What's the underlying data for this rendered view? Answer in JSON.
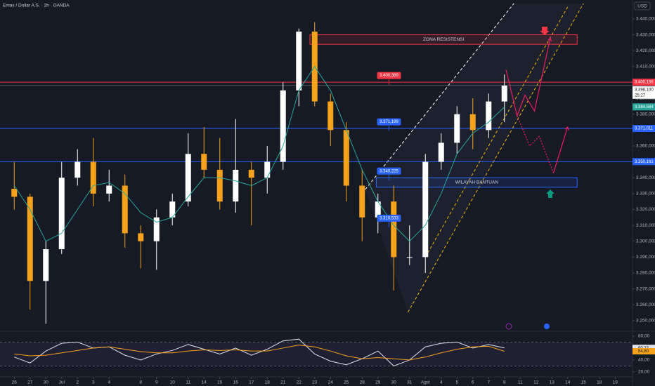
{
  "chart_data": [
    {
      "type": "candlestick",
      "title": "Emas / Dollar A.S. · 2h · OANDA",
      "currency": "USD",
      "x": [
        0,
        1,
        2,
        3,
        4,
        5,
        6,
        7,
        8,
        9,
        10,
        11,
        12,
        13,
        14,
        15,
        16,
        17,
        18,
        19,
        20,
        21,
        22,
        23,
        24,
        25,
        26,
        27,
        28,
        29,
        30,
        31
      ],
      "open": [
        3333,
        3328,
        3275,
        3295,
        3340,
        3350,
        3330,
        3335,
        3305,
        3300,
        3315,
        3325,
        3355,
        3345,
        3325,
        3345,
        3340,
        3350,
        3395,
        3432,
        3388,
        3370,
        3335,
        3315,
        3325,
        3290,
        3290,
        3350,
        3362,
        3380,
        3370,
        3388
      ],
      "high": [
        3350,
        3330,
        3300,
        3350,
        3358,
        3365,
        3345,
        3342,
        3310,
        3320,
        3330,
        3368,
        3372,
        3365,
        3377,
        3350,
        3360,
        3400,
        3434,
        3438,
        3393,
        3375,
        3345,
        3330,
        3335,
        3310,
        3355,
        3368,
        3385,
        3390,
        3393,
        3405
      ],
      "low": [
        3320,
        3257,
        3248,
        3292,
        3335,
        3322,
        3325,
        3296,
        3283,
        3282,
        3310,
        3322,
        3340,
        3320,
        3318,
        3310,
        3330,
        3345,
        3385,
        3385,
        3360,
        3325,
        3300,
        3305,
        3269,
        3285,
        3280,
        3345,
        3355,
        3358,
        3365,
        3375
      ],
      "close": [
        3328,
        3275,
        3295,
        3340,
        3350,
        3330,
        3335,
        3305,
        3300,
        3315,
        3325,
        3355,
        3345,
        3325,
        3345,
        3340,
        3350,
        3395,
        3432,
        3388,
        3370,
        3335,
        3315,
        3325,
        3290,
        3290,
        3350,
        3362,
        3380,
        3370,
        3388,
        3398
      ],
      "up_color": "#ffffff",
      "down_color": "#f7a21b",
      "ma": {
        "color": "#26a69a",
        "values": [
          3335,
          3320,
          3300,
          3305,
          3320,
          3335,
          3337,
          3330,
          3318,
          3312,
          3315,
          3328,
          3340,
          3340,
          3338,
          3335,
          3340,
          3360,
          3395,
          3410,
          3395,
          3370,
          3345,
          3325,
          3310,
          3300,
          3310,
          3330,
          3355,
          3368,
          3375,
          3384.584
        ],
        "value_labels": [
          null,
          null,
          null,
          null,
          null,
          null,
          null,
          null,
          null,
          null,
          null,
          null,
          null,
          null,
          null,
          null,
          null,
          null,
          null,
          null,
          null,
          null,
          null,
          null,
          null,
          null,
          null,
          null,
          null,
          null,
          null,
          "3.384,584"
        ]
      },
      "xlim": [
        -0.9,
        39.1
      ],
      "ylim": [
        3244.2,
        3451.9
      ],
      "xticks": [
        {
          "value": 0,
          "label": "26"
        },
        {
          "value": 1,
          "label": "27"
        },
        {
          "value": 2,
          "label": "30"
        },
        {
          "value": 3,
          "label": "Jul"
        },
        {
          "value": 4,
          "label": "2"
        },
        {
          "value": 5,
          "label": "3"
        },
        {
          "value": 6,
          "label": "4"
        },
        {
          "value": 8,
          "label": "8"
        },
        {
          "value": 9,
          "label": "9"
        },
        {
          "value": 10,
          "label": "10"
        },
        {
          "value": 11,
          "label": "11"
        },
        {
          "value": 12,
          "label": "14"
        },
        {
          "value": 13,
          "label": "15"
        },
        {
          "value": 14,
          "label": "16"
        },
        {
          "value": 15,
          "label": "17"
        },
        {
          "value": 16,
          "label": "18"
        },
        {
          "value": 17,
          "label": "21"
        },
        {
          "value": 18,
          "label": "22"
        },
        {
          "value": 19,
          "label": "23"
        },
        {
          "value": 20,
          "label": "24"
        },
        {
          "value": 21,
          "label": "25"
        },
        {
          "value": 22,
          "label": "28"
        },
        {
          "value": 23,
          "label": "29"
        },
        {
          "value": 24,
          "label": "30"
        },
        {
          "value": 25,
          "label": "31"
        },
        {
          "value": 26,
          "label": "Agst"
        },
        {
          "value": 27,
          "label": "4"
        },
        {
          "value": 28,
          "label": "5"
        },
        {
          "value": 29,
          "label": "6"
        },
        {
          "value": 30,
          "label": "7"
        },
        {
          "value": 31,
          "label": "8"
        },
        {
          "value": 32,
          "label": "11"
        },
        {
          "value": 33,
          "label": "12"
        },
        {
          "value": 34,
          "label": "13"
        },
        {
          "value": 35,
          "label": "14"
        },
        {
          "value": 36,
          "label": "15"
        },
        {
          "value": 37,
          "label": "18"
        },
        {
          "value": 38,
          "label": "19"
        }
      ],
      "yticks": [
        {
          "value": 3440,
          "label": "3.440,000"
        },
        {
          "value": 3430,
          "label": "3.430,000"
        },
        {
          "value": 3420,
          "label": "3.420,000"
        },
        {
          "value": 3410,
          "label": "3.410,000"
        },
        {
          "value": 3390,
          "label": "3.390,000"
        },
        {
          "value": 3380,
          "label": "3.380,000"
        },
        {
          "value": 3360,
          "label": "3.360,000"
        },
        {
          "value": 3340,
          "label": "3.340,000"
        },
        {
          "value": 3330,
          "label": "3.330,000"
        },
        {
          "value": 3320,
          "label": "3.320,000"
        },
        {
          "value": 3310,
          "label": "3.310,000"
        },
        {
          "value": 3300,
          "label": "3.300,000"
        },
        {
          "value": 3290,
          "label": "3.290,000"
        },
        {
          "value": 3280,
          "label": "3.280,000"
        },
        {
          "value": 3270,
          "label": "3.270,000"
        },
        {
          "value": 3260,
          "label": "3.260,000"
        },
        {
          "value": 3250,
          "label": "3.250,000"
        }
      ],
      "levels": [
        {
          "value": 3400.156,
          "label": "3.400,156",
          "color": "#f23645"
        },
        {
          "value": 3371.011,
          "label": "3.371,011",
          "color": "#2962ff"
        },
        {
          "value": 3350.161,
          "label": "3.350,161",
          "color": "#2962ff"
        }
      ],
      "current_price": {
        "value": 3398.1,
        "label": "3.398,100",
        "countdown": "25:27"
      },
      "annotations": [
        {
          "x": 23.7,
          "value": 3400.389,
          "label": "3.400,389",
          "color": "#f23645"
        },
        {
          "x": 23.7,
          "value": 3371.199,
          "label": "3.371,199",
          "color": "#2962ff"
        },
        {
          "x": 23.7,
          "value": 3340.225,
          "label": "3.340,225",
          "color": "#2962ff"
        },
        {
          "x": 23.7,
          "value": 3310.533,
          "label": "3.310,533",
          "color": "#2962ff"
        }
      ],
      "zones": [
        {
          "label": "ZONA RESISTENSI",
          "x": [
            18.7,
            35.6
          ],
          "y": [
            3424,
            3430
          ],
          "color": "#f23645"
        },
        {
          "label": "WILAYAH BANTUAN",
          "x": [
            22.9,
            35.6
          ],
          "y": [
            3334,
            3340
          ],
          "color": "#2962ff"
        }
      ],
      "trendlines": [
        {
          "color": "#ffffff",
          "points": [
            [
              22.2,
              3332.6
            ],
            [
              31.6,
              3449.7
            ]
          ]
        },
        {
          "color": "#f0b90b",
          "points": [
            [
              24.9,
              3255.3
            ],
            [
              36,
              3449.7
            ]
          ]
        },
        {
          "color": "#f0b90b",
          "points": [
            [
              26.0,
              3290
            ],
            [
              35.0,
              3447.5
            ]
          ]
        }
      ],
      "projections": [
        {
          "color": "#e91e63",
          "dashed": false,
          "points": [
            [
              31.1,
              3408
            ],
            [
              31.8,
              3379
            ],
            [
              32.3,
              3392
            ],
            [
              32.9,
              3382
            ],
            [
              33.9,
              3428
            ]
          ]
        },
        {
          "color": "#e91e63",
          "dashed": true,
          "points": [
            [
              31.8,
              3379
            ],
            [
              32.6,
              3360
            ],
            [
              33.2,
              3366
            ],
            [
              34.1,
              3343
            ]
          ]
        },
        {
          "color": "#e91e63",
          "dashed": false,
          "points": [
            [
              34.1,
              3343
            ],
            [
              35.0,
              3372
            ]
          ]
        }
      ]
    },
    {
      "type": "line",
      "x": [
        0,
        1,
        2,
        3,
        4,
        5,
        6,
        7,
        8,
        9,
        10,
        11,
        12,
        13,
        14,
        15,
        16,
        17,
        18,
        19,
        20,
        21,
        22,
        23,
        24,
        25,
        26,
        27,
        28,
        29,
        30,
        31
      ],
      "series": [
        {
          "color": "#e0e3eb",
          "values": [
            45,
            35,
            55,
            68,
            70,
            60,
            62,
            48,
            40,
            50,
            56,
            66,
            58,
            50,
            60,
            48,
            58,
            72,
            75,
            50,
            38,
            32,
            42,
            55,
            30,
            40,
            62,
            68,
            70,
            60,
            66,
            60.22
          ],
          "value_labels": [
            null,
            null,
            null,
            null,
            null,
            null,
            null,
            null,
            null,
            null,
            null,
            null,
            null,
            null,
            null,
            null,
            null,
            null,
            null,
            null,
            null,
            null,
            null,
            null,
            null,
            null,
            null,
            null,
            null,
            null,
            null,
            "60,22"
          ]
        },
        {
          "color": "#f7a21b",
          "values": [
            50,
            47,
            48,
            52,
            56,
            60,
            62,
            58,
            54,
            52,
            52,
            55,
            57,
            56,
            57,
            55,
            55,
            60,
            65,
            62,
            55,
            47,
            42,
            44,
            42,
            40,
            45,
            52,
            58,
            62,
            63,
            54.6
          ],
          "value_labels": [
            null,
            null,
            null,
            null,
            null,
            null,
            null,
            null,
            null,
            null,
            null,
            null,
            null,
            null,
            null,
            null,
            null,
            null,
            null,
            null,
            null,
            null,
            null,
            null,
            null,
            null,
            null,
            null,
            null,
            null,
            null,
            "54,60"
          ]
        }
      ],
      "levels": [
        30,
        70
      ],
      "xlim": [
        -0.9,
        39.1
      ],
      "ylim": [
        14,
        87
      ],
      "yticks": [
        {
          "value": 80,
          "label": "80,00"
        },
        {
          "value": 40,
          "label": "40,00"
        },
        {
          "value": 20,
          "label": "20,00"
        }
      ]
    }
  ]
}
